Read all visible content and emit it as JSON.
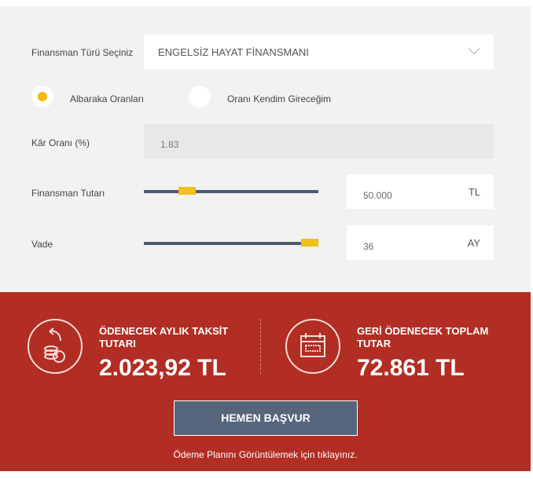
{
  "form": {
    "type_label": "Finansman Türü Seçiniz",
    "type_value": "ENGELSİZ HAYAT FİNANSMANI",
    "radio_options": [
      {
        "label": "Albaraka Oranları",
        "selected": true
      },
      {
        "label": "Oranı Kendim Gireceğim",
        "selected": false
      }
    ],
    "rate_label": "Kâr Oranı (%)",
    "rate_value": "1.83",
    "amount_label": "Finansman Tutarı",
    "amount_value": "50.000",
    "amount_unit": "TL",
    "amount_slider_fraction": 0.22,
    "term_label": "Vade",
    "term_value": "36",
    "term_unit": "AY",
    "term_slider_fraction": 1.0
  },
  "result": {
    "monthly_title": "ÖDENECEK AYLIK TAKSİT TUTARI",
    "monthly_amount": "2.023,92 TL",
    "total_title": "GERİ ÖDENECEK TOPLAM TUTAR",
    "total_amount": "72.861 TL",
    "apply_button": "HEMEN BAŞVUR",
    "plan_link": "Ödeme Planını Görüntülemek için tıklayınız."
  },
  "colors": {
    "accent": "#f0c117",
    "panel": "#b22d23",
    "button": "#56657c",
    "track": "#4f5a72"
  }
}
